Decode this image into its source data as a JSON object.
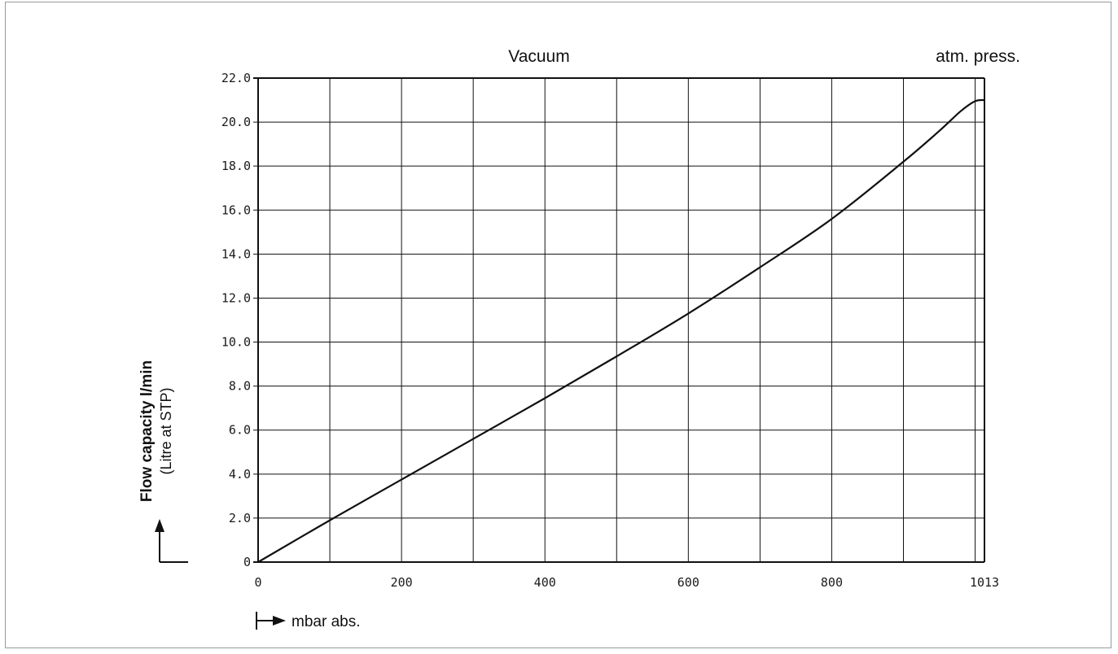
{
  "chart_data": {
    "type": "line",
    "header_left": "Vacuum",
    "header_right": "atm. press.",
    "xlabel": "mbar abs.",
    "ylabel": "Flow capacity l/min",
    "ylabel_sub": "(Litre at STP)",
    "xlim": [
      0,
      1013
    ],
    "ylim": [
      0,
      22
    ],
    "grid": true,
    "x_ticks": [
      {
        "value": 0,
        "label": "0"
      },
      {
        "value": 200,
        "label": "200"
      },
      {
        "value": 400,
        "label": "400"
      },
      {
        "value": 600,
        "label": "600"
      },
      {
        "value": 800,
        "label": "800"
      },
      {
        "value": 1013,
        "label": "1013"
      }
    ],
    "y_ticks": [
      {
        "value": 0,
        "label": "0"
      },
      {
        "value": 2,
        "label": "2.0"
      },
      {
        "value": 4,
        "label": "4.0"
      },
      {
        "value": 6,
        "label": "6.0"
      },
      {
        "value": 8,
        "label": "8.0"
      },
      {
        "value": 10,
        "label": "10.0"
      },
      {
        "value": 12,
        "label": "12.0"
      },
      {
        "value": 14,
        "label": "14.0"
      },
      {
        "value": 16,
        "label": "16.0"
      },
      {
        "value": 18,
        "label": "18.0"
      },
      {
        "value": 20,
        "label": "20.0"
      },
      {
        "value": 22,
        "label": "22.0"
      }
    ],
    "series": [
      {
        "color": "#111111",
        "x": [
          0,
          100,
          200,
          300,
          400,
          500,
          600,
          700,
          800,
          900,
          950,
          980,
          1000,
          1013
        ],
        "y": [
          0,
          1.9,
          3.75,
          5.6,
          7.45,
          9.35,
          11.3,
          13.4,
          15.6,
          18.2,
          19.6,
          20.5,
          20.95,
          21.0
        ]
      }
    ]
  }
}
